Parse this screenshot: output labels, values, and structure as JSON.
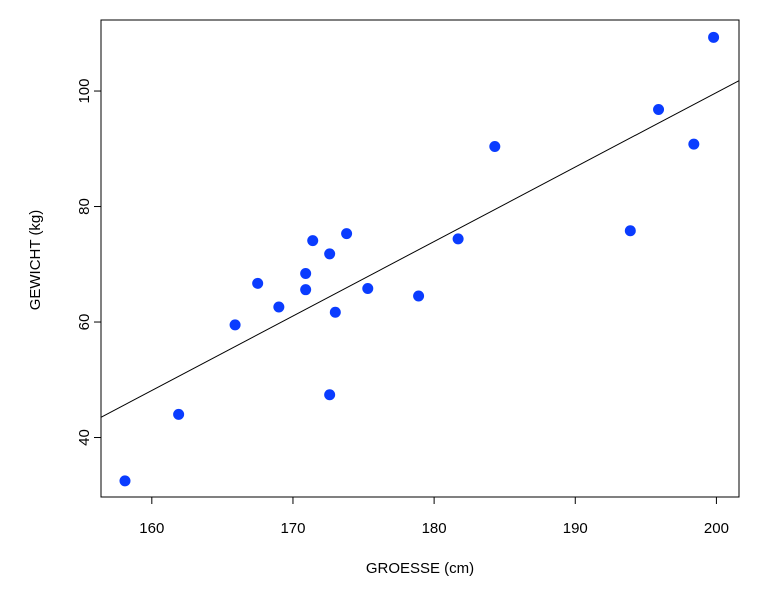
{
  "chart_data": {
    "type": "scatter",
    "title": "",
    "xlabel": "GROESSE (cm)",
    "ylabel": "GEWICHT (kg)",
    "xlim": [
      156.4,
      201.6
    ],
    "ylim": [
      29.7,
      112.3
    ],
    "x_ticks": [
      160,
      170,
      180,
      190,
      200
    ],
    "y_ticks": [
      40,
      60,
      80,
      100
    ],
    "grid": false,
    "legend": "none",
    "point_color": "#0a3cff",
    "series": [
      {
        "points": [
          {
            "x": 158.1,
            "y": 32.5
          },
          {
            "x": 161.9,
            "y": 44.0
          },
          {
            "x": 165.9,
            "y": 59.5
          },
          {
            "x": 167.5,
            "y": 66.7
          },
          {
            "x": 169.0,
            "y": 62.6
          },
          {
            "x": 170.9,
            "y": 68.4
          },
          {
            "x": 170.9,
            "y": 65.6
          },
          {
            "x": 171.4,
            "y": 74.1
          },
          {
            "x": 172.6,
            "y": 71.8
          },
          {
            "x": 172.6,
            "y": 47.4
          },
          {
            "x": 173.0,
            "y": 61.7
          },
          {
            "x": 173.8,
            "y": 75.3
          },
          {
            "x": 175.3,
            "y": 65.8
          },
          {
            "x": 178.9,
            "y": 64.5
          },
          {
            "x": 181.7,
            "y": 74.4
          },
          {
            "x": 184.3,
            "y": 90.4
          },
          {
            "x": 193.9,
            "y": 75.8
          },
          {
            "x": 195.9,
            "y": 96.8
          },
          {
            "x": 198.4,
            "y": 90.8
          },
          {
            "x": 199.8,
            "y": 109.3
          }
        ]
      }
    ],
    "regression_line": {
      "x": [
        156.4,
        201.6
      ],
      "y": [
        43.5,
        101.8
      ]
    }
  }
}
